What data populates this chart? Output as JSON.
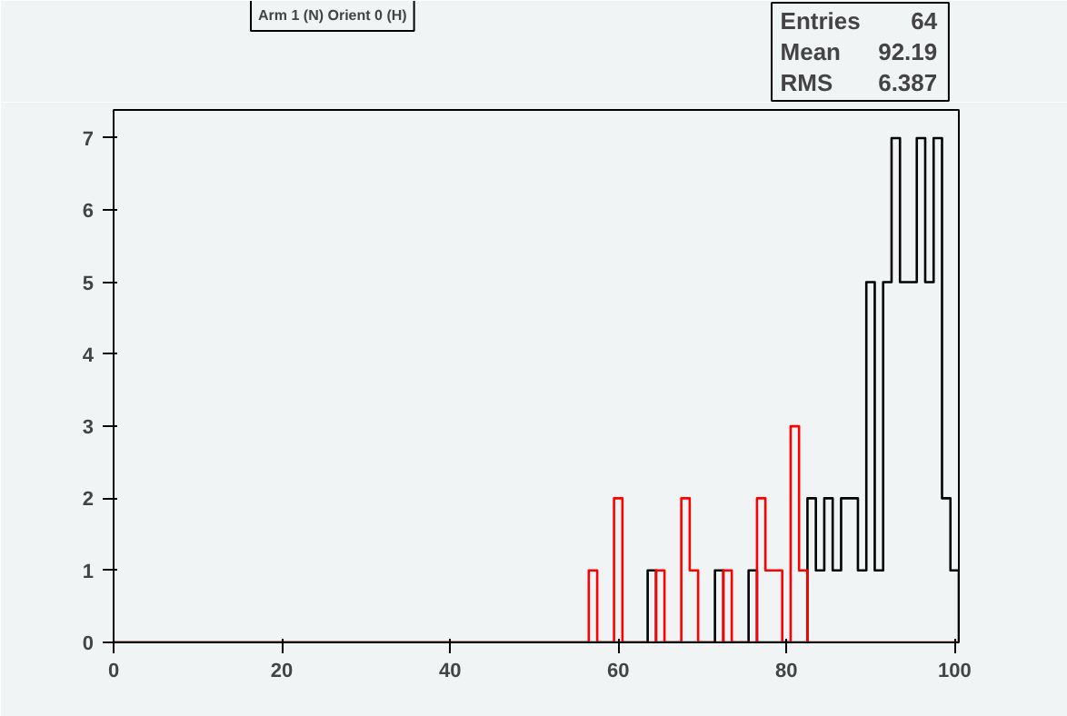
{
  "chart_data": {
    "type": "histogram",
    "title": "Arm 1 (N) Orient 0 (H)",
    "annotations": [
      "Entries 64",
      "Mean 92.19",
      "RMS 6.387"
    ],
    "bins": [
      0,
      0.5,
      1.5,
      2.5,
      3.5,
      4.5,
      5.5,
      6.5,
      7.5,
      8.5,
      9.5,
      10.5,
      11.5,
      12.5,
      13.5,
      14.5,
      15.5,
      16.5,
      17.5,
      18.5,
      19.5,
      20.5,
      21.5,
      22.5,
      23.5,
      24.5,
      25.5,
      26.5,
      27.5,
      28.5,
      29.5,
      30.5,
      31.5,
      32.5,
      33.5,
      34.5,
      35.5,
      36.5,
      37.5,
      38.5,
      39.5,
      40.5,
      41.5,
      42.5,
      43.5,
      44.5,
      45.5,
      46.5,
      47.5,
      48.5,
      49.5,
      50.5,
      51.5,
      52.5,
      53.5,
      54.5,
      55.5,
      56.5,
      57.5,
      58.5,
      59.5,
      60.5,
      61.5,
      62.5,
      63.5,
      64.5,
      65.5,
      66.5,
      67.5,
      68.5,
      69.5,
      70.5,
      71.5,
      72.5,
      73.5,
      74.5,
      75.5,
      76.5,
      77.5,
      78.5,
      79.5,
      80.5,
      81.5,
      82.5,
      83.5,
      84.5,
      85.5,
      86.5,
      87.5,
      88.5,
      89.5,
      90.5,
      91.5,
      92.5,
      93.5,
      94.5,
      95.5,
      96.5,
      97.5,
      98.5,
      99.5,
      100.5
    ],
    "series": [
      {
        "color": "#000000",
        "values": [
          0,
          0,
          0,
          0,
          0,
          0,
          0,
          0,
          0,
          0,
          0,
          0,
          0,
          0,
          0,
          0,
          0,
          0,
          0,
          0,
          0,
          0,
          0,
          0,
          0,
          0,
          0,
          0,
          0,
          0,
          0,
          0,
          0,
          0,
          0,
          0,
          0,
          0,
          0,
          0,
          0,
          0,
          0,
          0,
          0,
          0,
          0,
          0,
          0,
          0,
          0,
          0,
          0,
          0,
          0,
          0,
          0,
          0,
          0,
          0,
          0,
          0,
          0,
          0,
          1,
          0,
          0,
          0,
          0,
          0,
          0,
          0,
          1,
          0,
          0,
          0,
          1,
          0,
          0,
          0,
          0,
          0,
          0,
          2,
          1,
          2,
          1,
          2,
          2,
          1,
          5,
          1,
          5,
          7,
          5,
          5,
          7,
          5,
          7,
          2,
          1
        ]
      },
      {
        "color": "#ff0000",
        "values": [
          0,
          0,
          0,
          0,
          0,
          0,
          0,
          0,
          0,
          0,
          0,
          0,
          0,
          0,
          0,
          0,
          0,
          0,
          0,
          0,
          0,
          0,
          0,
          0,
          0,
          0,
          0,
          0,
          0,
          0,
          0,
          0,
          0,
          0,
          0,
          0,
          0,
          0,
          0,
          0,
          0,
          0,
          0,
          0,
          0,
          0,
          0,
          0,
          0,
          0,
          0,
          0,
          0,
          0,
          0,
          0,
          0,
          1,
          0,
          0,
          2,
          0,
          0,
          0,
          0,
          1,
          0,
          0,
          2,
          1,
          0,
          0,
          0,
          1,
          0,
          0,
          0,
          2,
          1,
          1,
          0,
          3,
          1,
          0,
          0,
          0,
          0,
          0,
          0,
          0,
          0,
          0,
          0,
          0,
          0,
          0,
          0,
          0,
          0,
          0,
          0
        ]
      }
    ],
    "xlim": [
      0,
      100.5
    ],
    "ylim": [
      0,
      7.39
    ],
    "xticks": [
      0,
      20,
      40,
      60,
      80,
      100
    ],
    "yticks": [
      0,
      1,
      2,
      3,
      4,
      5,
      6,
      7
    ],
    "grid": false
  }
}
